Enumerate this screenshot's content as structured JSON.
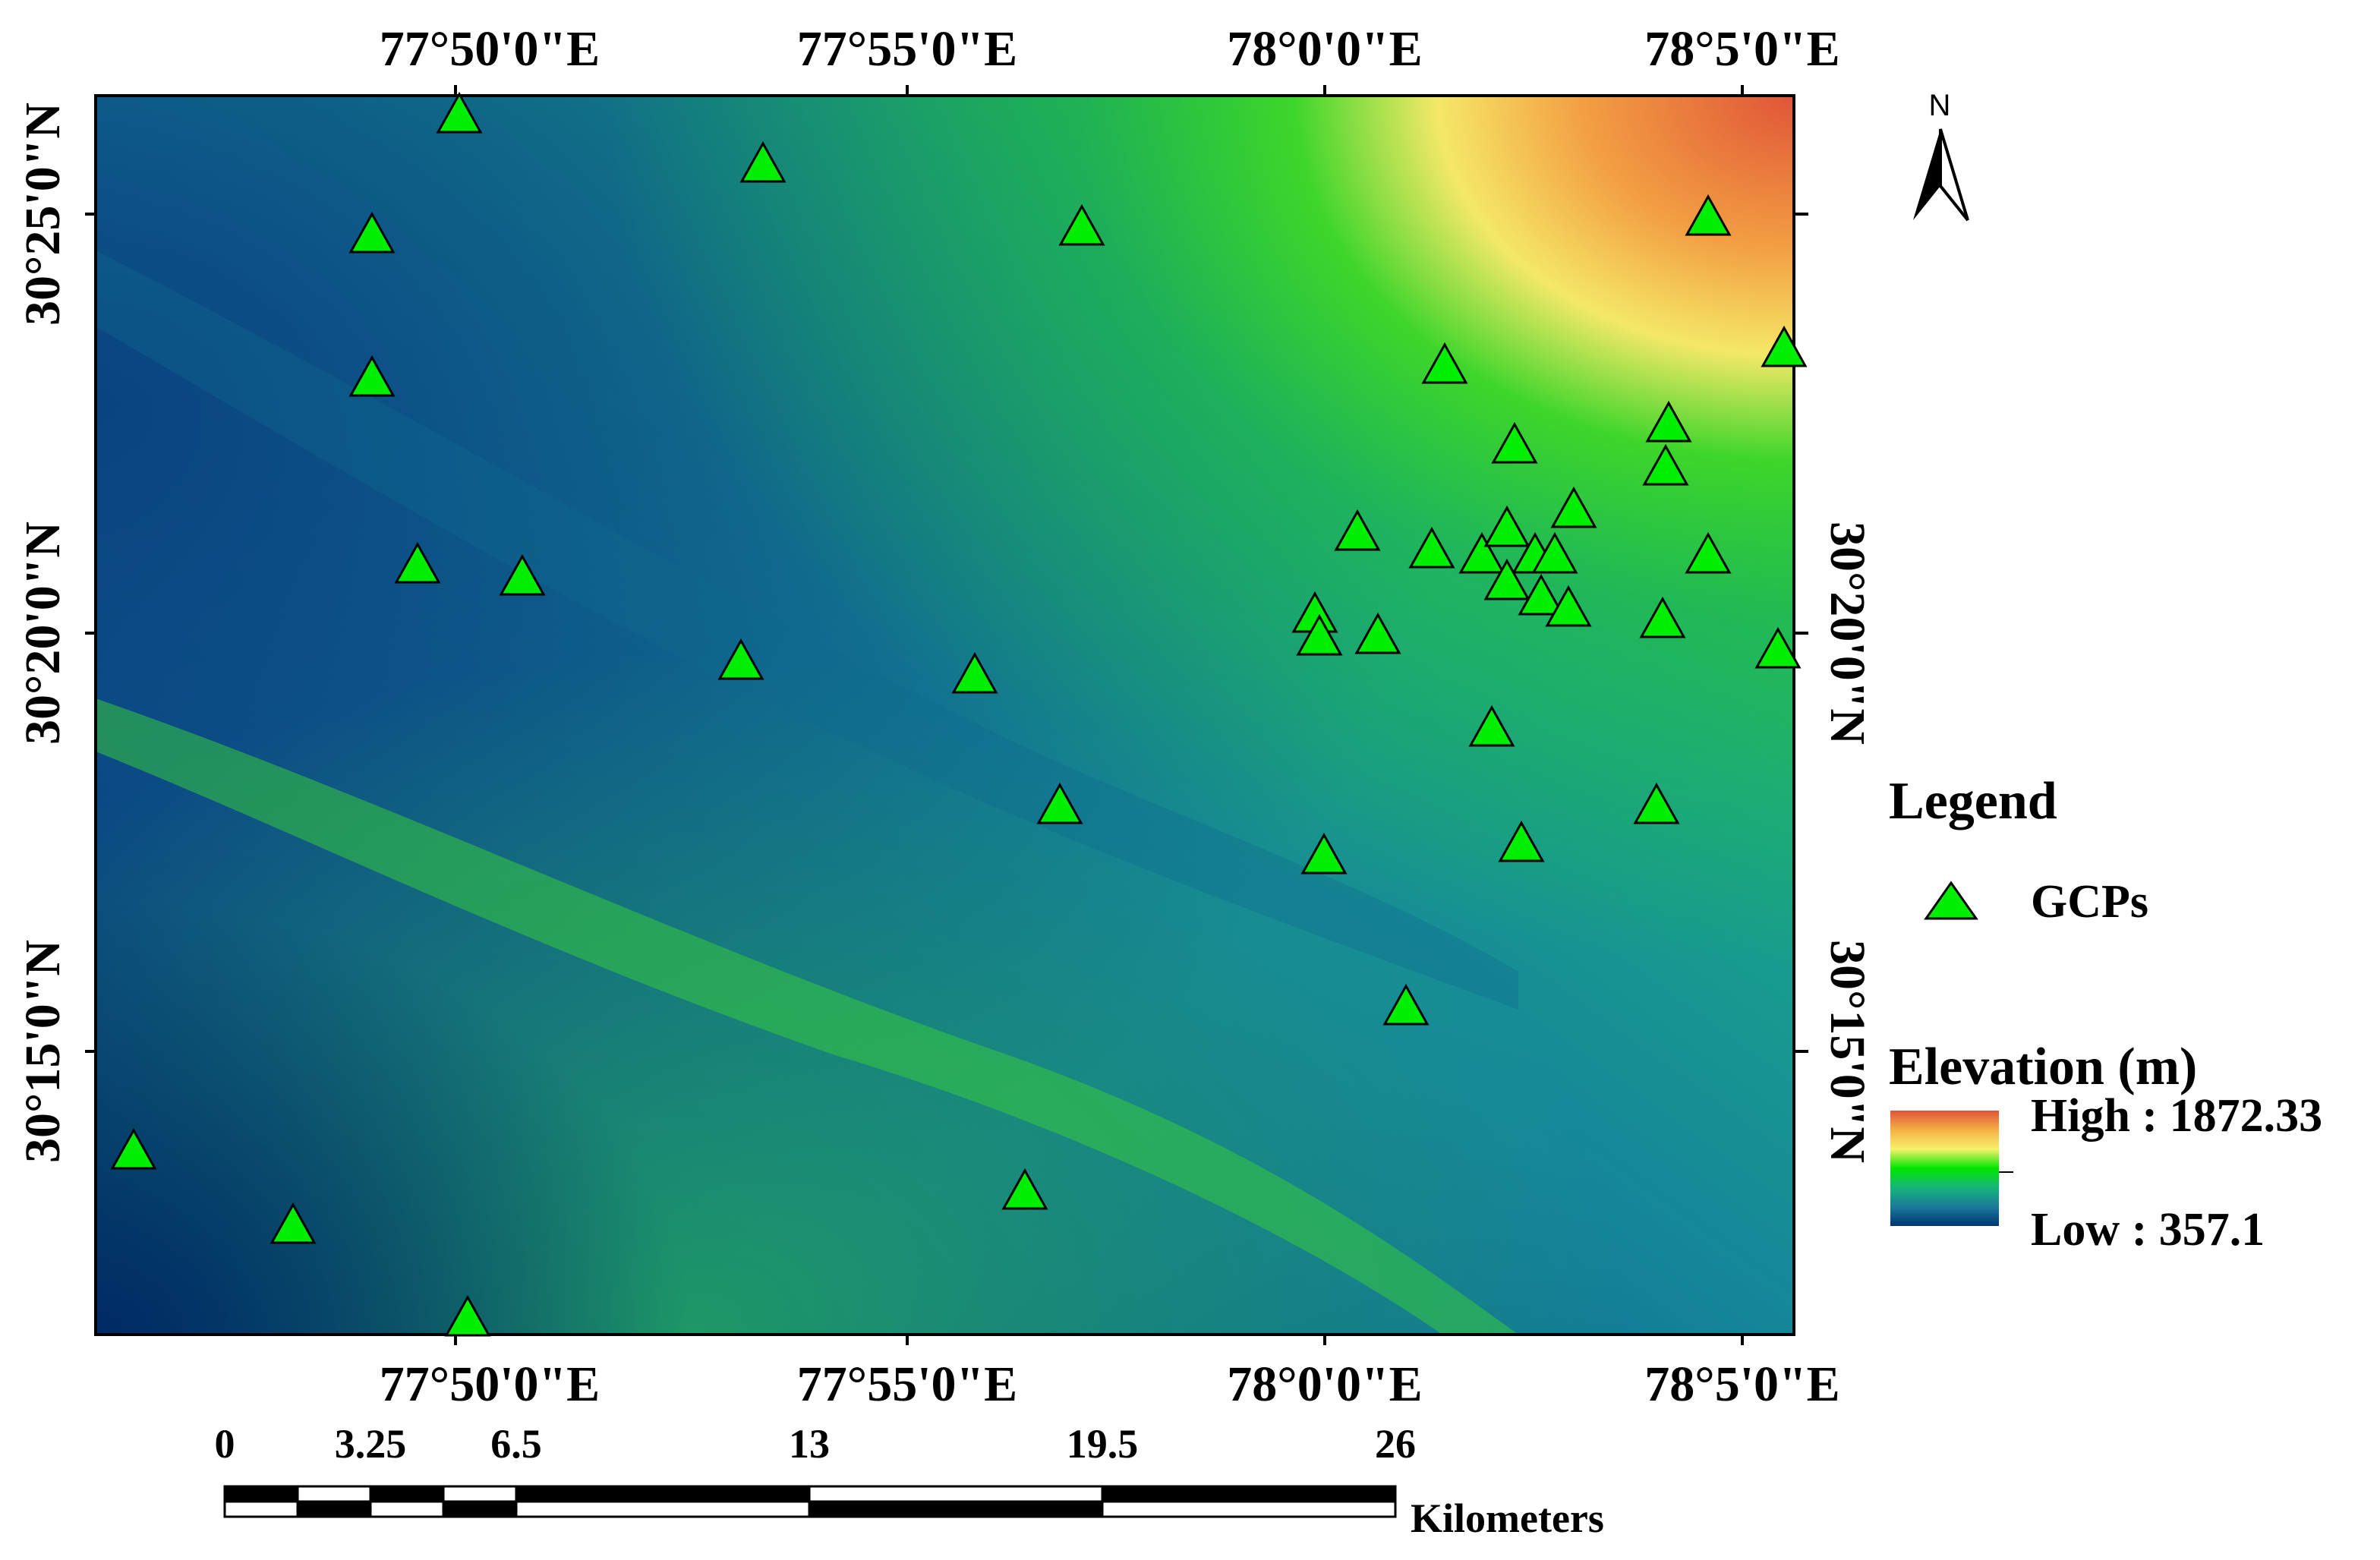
{
  "map": {
    "longitude_labels": [
      "77°50'0\"E",
      "77°55'0\"E",
      "78°0'0\"E",
      "78°5'0\"E"
    ],
    "latitude_labels": [
      "30°25'0\"N",
      "30°20'0\"N",
      "30°15'0\"N"
    ],
    "north_arrow_label": "N",
    "gcp_count": 41
  },
  "legend": {
    "title": "Legend",
    "gcp_label": "GCPs",
    "gcp_color": "#00ee00",
    "elevation_title": "Elevation (m)",
    "high_label": "High : 1872.33",
    "low_label": "Low : 357.1",
    "ramp_colors": [
      "#e0553a",
      "#f5b045",
      "#f6f26a",
      "#00e600",
      "#16b57a",
      "#1a7a9a",
      "#003573"
    ]
  },
  "scale_bar": {
    "labels": [
      "0",
      "3.25",
      "6.5",
      "13",
      "19.5",
      "26"
    ],
    "units": "Kilometers"
  }
}
